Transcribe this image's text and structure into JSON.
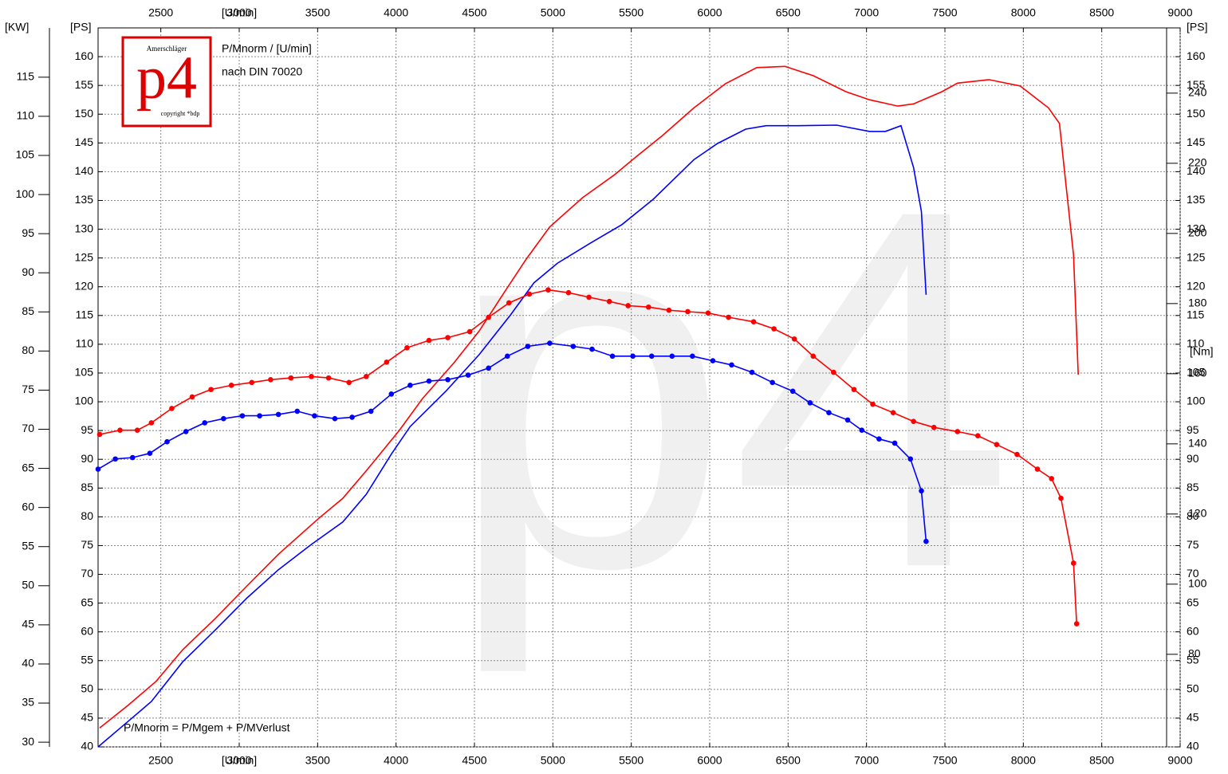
{
  "chart_data": {
    "type": "line",
    "annotations": [
      "P/Mnorm / [U/min]",
      "nach DIN 70020",
      "P/Mnorm = P/Mgem + P/MVerlust"
    ],
    "logo": {
      "top": "Amerschläger",
      "main": "p4",
      "bottom": "copyright *bdp"
    },
    "watermark": "p4",
    "x_label": "[U/min]",
    "y_label": "[PS]",
    "y3_label": "[KW]",
    "y2_label": "[Nm]",
    "xlim": [
      2100,
      9000
    ],
    "xticks": [
      2500,
      3000,
      3500,
      4000,
      4500,
      5000,
      5500,
      6000,
      6500,
      7000,
      7500,
      8000,
      8500,
      9000
    ],
    "ylim": [
      40,
      165
    ],
    "yticks": [
      40,
      45,
      50,
      55,
      60,
      65,
      70,
      75,
      80,
      85,
      90,
      95,
      100,
      105,
      110,
      115,
      120,
      125,
      130,
      135,
      140,
      145,
      150,
      155,
      160
    ],
    "y3lim": [
      29.4,
      121.3
    ],
    "y3ticks": [
      30,
      35,
      40,
      45,
      50,
      55,
      60,
      65,
      70,
      75,
      80,
      85,
      90,
      95,
      100,
      105,
      110,
      115
    ],
    "y2lim": [
      53.6,
      258.6
    ],
    "y2ticks": [
      80,
      100,
      120,
      140,
      160,
      180,
      200,
      220,
      240
    ],
    "y2_axis_top": 258.6,
    "grid": true,
    "series": [
      {
        "color": "#ff0000",
        "axis": "y",
        "markers": false,
        "x": [
          2110,
          2290,
          2470,
          2640,
          2850,
          3050,
          3250,
          3510,
          3660,
          3810,
          4020,
          4170,
          4370,
          4530,
          4680,
          4830,
          4980,
          5190,
          5390,
          5540,
          5700,
          5900,
          6100,
          6300,
          6480,
          6660,
          6870,
          7020,
          7200,
          7300,
          7480,
          7580,
          7780,
          7980,
          8160,
          8230,
          8260,
          8320,
          8350
        ],
        "values": [
          43.3,
          47.2,
          51.4,
          56.9,
          62.4,
          68,
          73.5,
          79.8,
          83.2,
          88,
          95,
          100.6,
          106.8,
          112.3,
          118.6,
          124.8,
          130.4,
          135.5,
          139.4,
          142.8,
          146.3,
          151.1,
          155.3,
          158.1,
          158.3,
          156.7,
          153.9,
          152.5,
          151.4,
          151.8,
          153.9,
          155.4,
          156,
          154.9,
          151.1,
          148.4,
          140.7,
          125.5,
          104.7
        ]
      },
      {
        "color": "#0000ff",
        "axis": "y",
        "markers": false,
        "x": [
          2100,
          2290,
          2440,
          2640,
          2850,
          3050,
          3250,
          3460,
          3660,
          3810,
          3970,
          4090,
          4320,
          4530,
          4730,
          4880,
          5030,
          5240,
          5440,
          5640,
          5900,
          6050,
          6230,
          6360,
          6560,
          6810,
          7020,
          7120,
          7220,
          7300,
          7350,
          7380
        ],
        "values": [
          40,
          44.4,
          47.9,
          54.8,
          60.4,
          65.9,
          70.8,
          75.2,
          79.1,
          83.9,
          90.9,
          95.7,
          101.9,
          108.2,
          115.1,
          120.7,
          124.1,
          127.6,
          130.8,
          135.2,
          142.1,
          144.9,
          147.4,
          148,
          148,
          148.1,
          147,
          147,
          148,
          140.7,
          133.1,
          118.6
        ]
      },
      {
        "color": "#ff0000",
        "axis": "y2",
        "markers": true,
        "x": [
          2110,
          2240,
          2350,
          2440,
          2570,
          2700,
          2820,
          2950,
          3080,
          3200,
          3330,
          3460,
          3570,
          3700,
          3810,
          3940,
          4070,
          4210,
          4330,
          4470,
          4590,
          4720,
          4850,
          4970,
          5100,
          5230,
          5360,
          5480,
          5610,
          5740,
          5860,
          5990,
          6120,
          6280,
          6410,
          6540,
          6660,
          6790,
          6920,
          7040,
          7170,
          7300,
          7430,
          7580,
          7710,
          7830,
          7960,
          8090,
          8180,
          8240,
          8320,
          8340
        ],
        "values": [
          142.7,
          143.9,
          143.9,
          146,
          150.1,
          153.4,
          155.5,
          156.7,
          157.5,
          158.3,
          158.8,
          159.2,
          158.8,
          157.5,
          159.2,
          163.3,
          167.4,
          169.5,
          170.3,
          172,
          176.1,
          180.2,
          182.7,
          183.9,
          183.1,
          181.8,
          180.6,
          179.4,
          179,
          178.1,
          177.7,
          177.3,
          176.1,
          174.8,
          172.8,
          169.9,
          165,
          160.4,
          155.5,
          151.3,
          148.9,
          146.4,
          144.7,
          143.5,
          142.3,
          139.8,
          137,
          132.8,
          130.1,
          124.5,
          106,
          88.7
        ]
      },
      {
        "color": "#0000ff",
        "axis": "y2",
        "markers": true,
        "x": [
          2100,
          2210,
          2320,
          2430,
          2540,
          2660,
          2780,
          2900,
          3020,
          3130,
          3250,
          3370,
          3480,
          3610,
          3720,
          3840,
          3970,
          4090,
          4210,
          4330,
          4460,
          4590,
          4710,
          4840,
          4980,
          5130,
          5250,
          5380,
          5510,
          5630,
          5760,
          5890,
          6020,
          6140,
          6270,
          6400,
          6530,
          6640,
          6760,
          6880,
          6970,
          7080,
          7180,
          7280,
          7350,
          7380
        ],
        "values": [
          132.8,
          135.7,
          136.1,
          137.3,
          140.6,
          143.5,
          146,
          147.2,
          148,
          148,
          148.4,
          149.3,
          148,
          147.2,
          147.6,
          149.3,
          154.2,
          156.7,
          157.9,
          158.3,
          159.6,
          161.6,
          165,
          167.8,
          168.7,
          167.8,
          167,
          165,
          165,
          165,
          165,
          165,
          163.7,
          162.5,
          160.4,
          157.5,
          155,
          151.7,
          148.9,
          146.8,
          143.9,
          141.4,
          140.2,
          135.7,
          126.6,
          112.2
        ]
      }
    ]
  }
}
